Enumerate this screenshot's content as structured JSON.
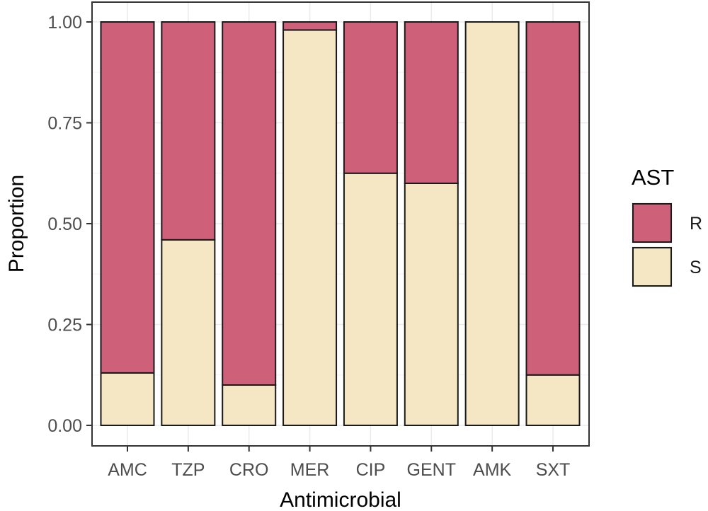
{
  "chart_data": {
    "type": "bar",
    "stacked": true,
    "categories": [
      "AMC",
      "TZP",
      "CRO",
      "MER",
      "CIP",
      "GENT",
      "AMK",
      "SXT"
    ],
    "series": [
      {
        "name": "S",
        "values": [
          0.13,
          0.46,
          0.1,
          0.98,
          0.625,
          0.6,
          1.0,
          0.125
        ],
        "color": "#f5e6c4"
      },
      {
        "name": "R",
        "values": [
          0.87,
          0.54,
          0.9,
          0.02,
          0.375,
          0.4,
          0.0,
          0.875
        ],
        "color": "#cf6079"
      }
    ],
    "xlabel": "Antimicrobial",
    "ylabel": "Proportion",
    "ylim": [
      0,
      1
    ],
    "yticks": [
      "0.00",
      "0.25",
      "0.50",
      "0.75",
      "1.00"
    ],
    "legend": {
      "title": "AST",
      "position": "right",
      "entries": [
        "R",
        "S"
      ]
    },
    "grid": true
  },
  "colors": {
    "R": "#cf6079",
    "S": "#f5e6c4",
    "panel_border": "#333333",
    "grid": "#ebebeb"
  }
}
